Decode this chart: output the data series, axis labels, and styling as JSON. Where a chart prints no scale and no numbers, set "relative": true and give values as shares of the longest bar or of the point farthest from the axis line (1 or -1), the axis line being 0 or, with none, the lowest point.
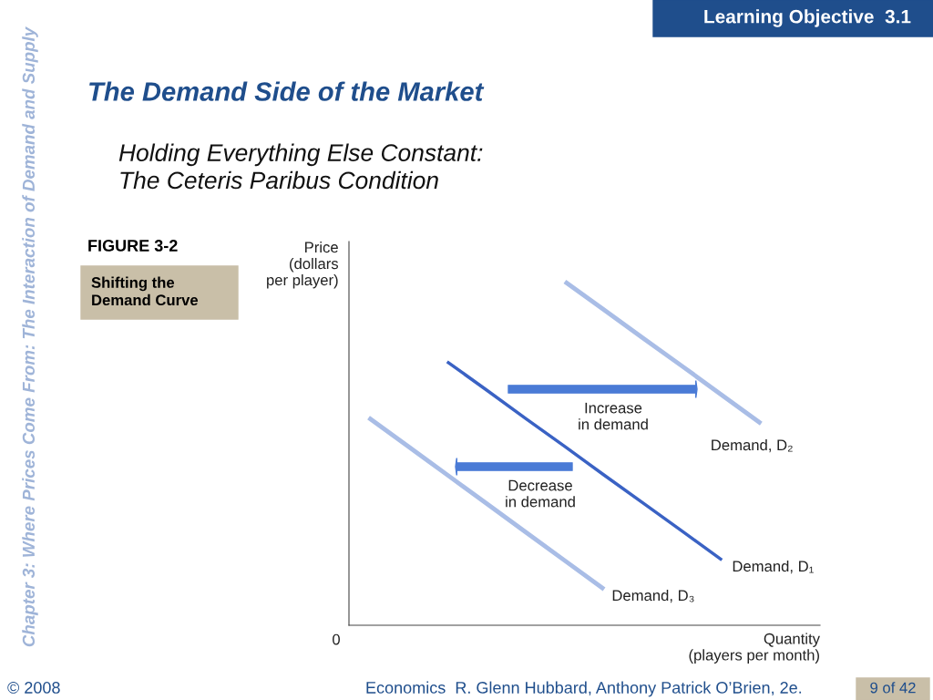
{
  "chart_data": {
    "type": "line",
    "title": "The Demand Side of the Market",
    "subtitle": "Holding Everything Else Constant:\nThe Ceteris Paribus Condition",
    "xlabel": "Quantity\n(players per month)",
    "ylabel": "Price\n(dollars\nper player)",
    "relative": true,
    "series": [
      {
        "name": "Demand, D₂",
        "color": "#a9bde6",
        "values": [
          null,
          null,
          null,
          null,
          null,
          1.0,
          0.918,
          0.835,
          0.753,
          0.67,
          0.587,
          null
        ]
      },
      {
        "name": "Demand, D₁",
        "color": "#3a62c4",
        "values": [
          null,
          null,
          0.767,
          0.685,
          0.602,
          0.52,
          0.437,
          0.355,
          0.273,
          0.19,
          null,
          null
        ]
      },
      {
        "name": "Demand, D₃",
        "color": "#a9bde6",
        "values": [
          0.604,
          0.521,
          0.438,
          0.355,
          0.271,
          0.188,
          0.105,
          null,
          null,
          null,
          null,
          null
        ]
      }
    ],
    "categories": [
      null,
      null,
      null,
      null,
      null,
      null,
      null,
      null,
      null,
      null,
      null,
      null
    ],
    "annotations": [
      "Increase\nin demand",
      "Decrease\nin demand",
      "0",
      "Learning Objective  3.1",
      "Chapter 3: Where Prices Come From: The Interaction of Demand and Supply",
      "FIGURE 3-2",
      "Shifting the\nDemand Curve",
      "© 2008",
      "Economics  R. Glenn Hubbard, Anthony Patrick O’Brien, 2e.",
      "9 of 42"
    ],
    "legend": false
  }
}
